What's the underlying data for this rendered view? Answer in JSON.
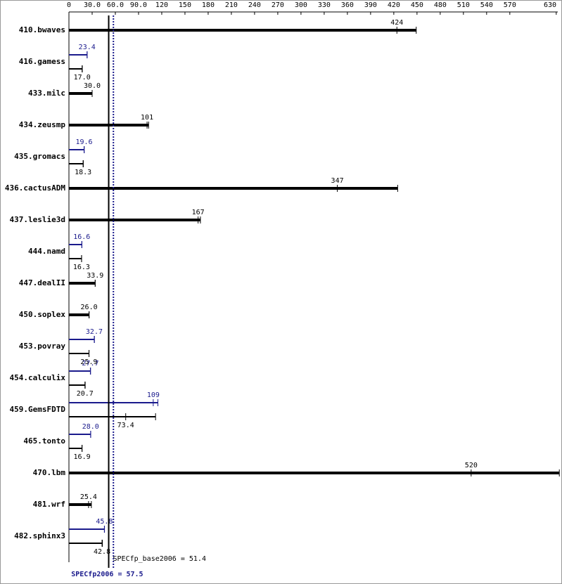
{
  "chart_data": {
    "type": "spec-bar",
    "categories": [
      "410.bwaves",
      "416.gamess",
      "433.milc",
      "434.zeusmp",
      "435.gromacs",
      "436.cactusADM",
      "437.leslie3d",
      "444.namd",
      "447.dealII",
      "450.soplex",
      "453.povray",
      "454.calculix",
      "459.GemsFDTD",
      "465.tonto",
      "470.lbm",
      "481.wrf",
      "482.sphinx3"
    ],
    "series": [
      {
        "name": "base",
        "color": "#000000",
        "values": [
          424,
          17.0,
          30.0,
          101,
          18.3,
          347,
          167,
          16.3,
          33.9,
          26.0,
          25.9,
          20.7,
          73.4,
          16.9,
          520,
          25.4,
          42.8
        ],
        "value_labels": [
          "424",
          "17.0",
          "30.0",
          "101",
          "18.3",
          "347",
          "167",
          "16.3",
          "33.9",
          "26.0",
          "25.9",
          "20.7",
          "73.4",
          "16.9",
          "520",
          "25.4",
          "42.8"
        ],
        "max": [
          449,
          17.3,
          30.0,
          103,
          18.6,
          425,
          170,
          16.4,
          34.0,
          26.1,
          26.0,
          21.0,
          112,
          17.0,
          634,
          29.0,
          43.3
        ]
      },
      {
        "name": "peak",
        "color": "#1a1a8c",
        "values": [
          null,
          23.4,
          null,
          null,
          19.6,
          null,
          null,
          16.6,
          null,
          null,
          32.7,
          27.7,
          109,
          28.0,
          null,
          null,
          45.8
        ],
        "value_labels": [
          null,
          "23.4",
          null,
          null,
          "19.6",
          null,
          null,
          "16.6",
          null,
          null,
          "32.7",
          "27.7",
          "109",
          "28.0",
          null,
          null,
          "45.8"
        ],
        "max": [
          null,
          23.6,
          null,
          null,
          19.8,
          null,
          null,
          16.8,
          null,
          null,
          33.0,
          28.0,
          115,
          28.2,
          null,
          null,
          46.0
        ]
      }
    ],
    "xlim": [
      0,
      632
    ],
    "xticks": [
      0,
      {
        "value": 30,
        "label": "30.0"
      },
      {
        "value": 60,
        "label": "60.0"
      },
      {
        "value": 90,
        "label": "90.0"
      },
      120,
      150,
      180,
      210,
      240,
      270,
      300,
      330,
      360,
      390,
      420,
      450,
      480,
      510,
      540,
      570,
      630
    ],
    "reference_lines": [
      {
        "label": "SPECfp_base2006 = 51.4",
        "value": 51.4,
        "color": "#000000",
        "style": "solid"
      },
      {
        "label": "SPECfp2006 = 57.5",
        "value": 57.5,
        "color": "#1a1a8c",
        "style": "dotted"
      }
    ]
  }
}
